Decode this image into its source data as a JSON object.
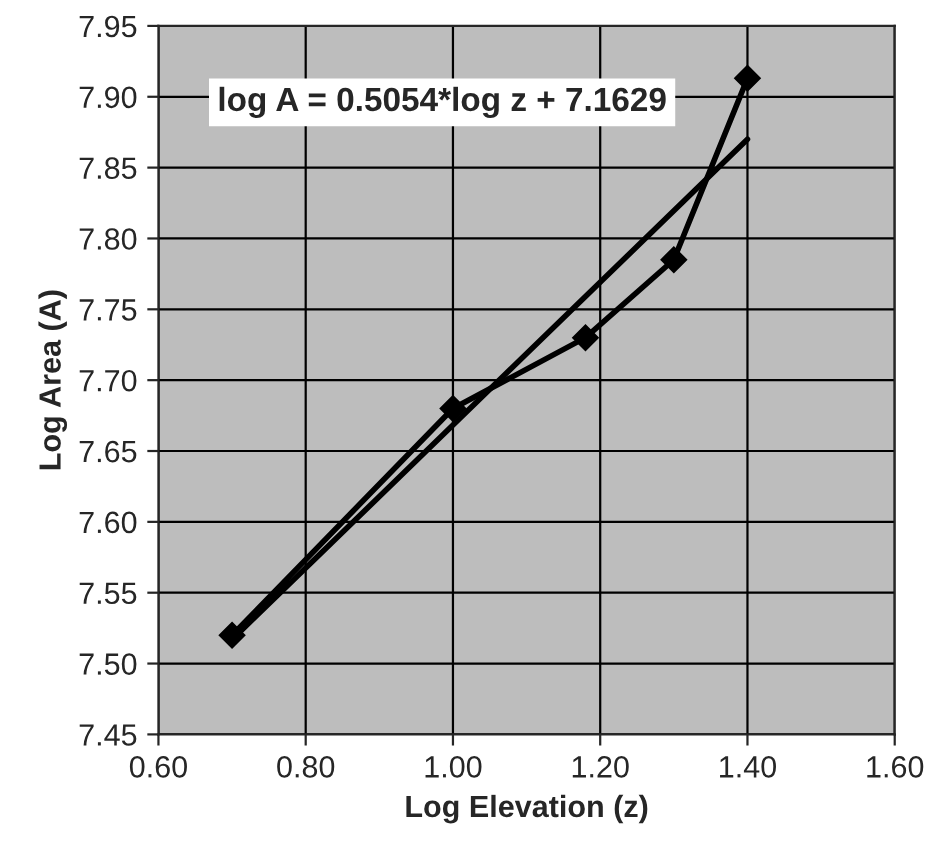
{
  "chart_data": {
    "type": "line",
    "xlabel": "Log Elevation (z)",
    "ylabel": "Log Area (A)",
    "annotations": [
      "log A = 0.5054*log z + 7.1629"
    ],
    "series": [
      {
        "color": "#000000",
        "x": [
          0.7,
          1.0,
          1.18,
          1.3,
          1.4
        ],
        "values": [
          7.52,
          7.68,
          7.73,
          7.785,
          7.913
        ],
        "marker": "diamond"
      },
      {
        "color": "#000000",
        "x": [
          0.7,
          1.4
        ],
        "values": [
          7.517,
          7.87
        ]
      }
    ],
    "xlim": [
      0.6,
      1.6
    ],
    "xticks": [
      {
        "value": 0.6,
        "label": "0.60"
      },
      {
        "value": 0.8,
        "label": "0.80"
      },
      {
        "value": 1.0,
        "label": "1.00"
      },
      {
        "value": 1.2,
        "label": "1.20"
      },
      {
        "value": 1.4,
        "label": "1.40"
      },
      {
        "value": 1.6,
        "label": "1.60"
      }
    ],
    "ylim": [
      7.45,
      7.95
    ],
    "yticks": [
      {
        "value": 7.45,
        "label": "7.45"
      },
      {
        "value": 7.5,
        "label": "7.50"
      },
      {
        "value": 7.55,
        "label": "7.55"
      },
      {
        "value": 7.6,
        "label": "7.60"
      },
      {
        "value": 7.65,
        "label": "7.65"
      },
      {
        "value": 7.7,
        "label": "7.70"
      },
      {
        "value": 7.75,
        "label": "7.75"
      },
      {
        "value": 7.8,
        "label": "7.80"
      },
      {
        "value": 7.85,
        "label": "7.85"
      },
      {
        "value": 7.9,
        "label": "7.90"
      },
      {
        "value": 7.95,
        "label": "7.95"
      }
    ],
    "grid": true
  }
}
